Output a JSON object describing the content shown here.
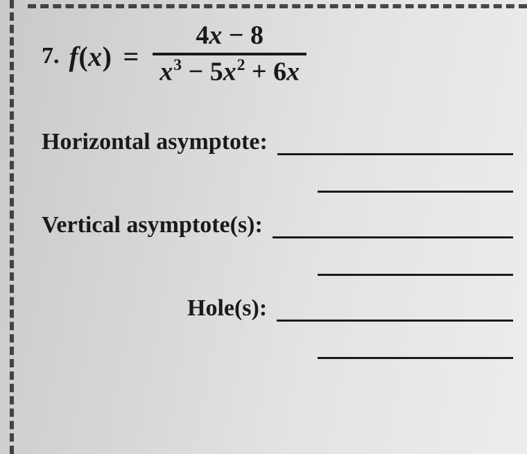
{
  "problem": {
    "number": "7.",
    "lhs_func": "f",
    "lhs_arg": "x",
    "equals": "=",
    "numerator_plain": "4x − 8",
    "denominator_plain": "x³ − 5x² + 6x",
    "colors": {
      "text": "#1a1a1a",
      "dash": "#2b2b2b",
      "underline": "#1a1a1a",
      "bg_gradient_from": "#c8c9cb",
      "bg_gradient_to": "#ededef"
    },
    "font": {
      "family": "Georgia, Times New Roman, serif",
      "label_size_pt": 26,
      "math_size_pt": 30
    }
  },
  "fields": [
    {
      "label": "Horizontal asymptote:",
      "blank_lines": 2
    },
    {
      "label": "Vertical asymptote(s):",
      "blank_lines": 2
    },
    {
      "label": "Hole(s):",
      "blank_lines": 2
    }
  ]
}
